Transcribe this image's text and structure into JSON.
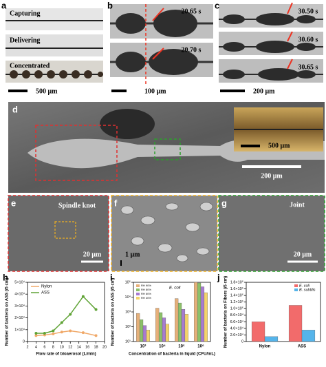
{
  "panel_letters": [
    "a",
    "b",
    "c",
    "d",
    "e",
    "f",
    "g",
    "h",
    "i",
    "j"
  ],
  "panels": {
    "a": {
      "labels": [
        "Capturing",
        "Delivering",
        "Concentrated"
      ],
      "scale": "500 μm"
    },
    "b": {
      "times": [
        "20.65 s",
        "20.70 s"
      ],
      "scale": "100 μm"
    },
    "c": {
      "times": [
        "30.50 s",
        "30.60 s",
        "30.65 s"
      ],
      "scale": "200 μm"
    },
    "d": {
      "scale": "200 μm",
      "inset_scale": "500 μm"
    },
    "e": {
      "label": "Spindle knot",
      "scale": "20 μm"
    },
    "f": {
      "scale": "1 μm"
    },
    "g": {
      "label": "Joint",
      "scale": "20 μm"
    }
  },
  "chart_data": [
    {
      "type": "line",
      "x_label": "Flow rate of bioaerosol (L/min)",
      "y_label": "Number of bacteria on ASS (/5 cm)",
      "xlim": [
        2,
        20
      ],
      "xticks": [
        2,
        4,
        6,
        8,
        10,
        12,
        14,
        16,
        18,
        20
      ],
      "ylim": [
        0,
        50000
      ],
      "yticks": [
        0,
        {
          "value": 10000,
          "label": "1×10⁴"
        },
        {
          "value": 20000,
          "label": "2×10⁴"
        },
        {
          "value": 30000,
          "label": "3×10⁴"
        },
        {
          "value": 40000,
          "label": "4×10⁴"
        },
        {
          "value": 50000,
          "label": "5×10⁴"
        }
      ],
      "x": [
        4,
        6,
        8,
        10,
        12,
        15,
        18
      ],
      "series": [
        {
          "name": "Nylon",
          "color": "#f0a868",
          "values": [
            5000,
            5500,
            6500,
            8000,
            9000,
            7500,
            5000
          ]
        },
        {
          "name": "ASS",
          "color": "#5fa335",
          "values": [
            7000,
            7000,
            9000,
            16000,
            23000,
            38000,
            27000
          ]
        }
      ]
    },
    {
      "type": "bar",
      "log_scale": true,
      "annotation": "E. coli",
      "x_label": "Concentration of bacteria in liquid (CFU/mL)",
      "y_label": "Number of bacteria on ASS (/5 cm)",
      "categories": [
        "10³",
        "10⁴",
        "10⁵",
        "10⁶"
      ],
      "ylim": [
        10,
        100000
      ],
      "yticks": [
        {
          "value": 10,
          "label": "10¹"
        },
        {
          "value": 100,
          "label": "10²"
        },
        {
          "value": 1000,
          "label": "10³"
        },
        {
          "value": 10000,
          "label": "10⁴"
        },
        {
          "value": 100000,
          "label": "10⁵"
        }
      ],
      "series": [
        {
          "name": "RH 90%",
          "color": "#e6b07a",
          "values": [
            800,
            1800,
            8000,
            100000
          ]
        },
        {
          "name": "RH 80%",
          "color": "#8cc06a",
          "values": [
            300,
            900,
            4000,
            90000
          ]
        },
        {
          "name": "RH 60%",
          "color": "#a77bd0",
          "values": [
            120,
            400,
            1500,
            50000
          ]
        },
        {
          "name": "RH 40%",
          "color": "#f2d36b",
          "values": [
            60,
            150,
            700,
            20000
          ]
        }
      ]
    },
    {
      "type": "bar",
      "y_label": "Number of bacteria on Fibers (/5 cm)",
      "categories": [
        "Nylon",
        "ASS"
      ],
      "ylim": [
        0,
        180000
      ],
      "yticks": [
        0,
        {
          "value": 20000,
          "label": "2.0×10⁴"
        },
        {
          "value": 40000,
          "label": "4.0×10⁴"
        },
        {
          "value": 60000,
          "label": "6.0×10⁴"
        },
        {
          "value": 80000,
          "label": "8.0×10⁴"
        },
        {
          "value": 100000,
          "label": "1.0×10⁵"
        },
        {
          "value": 120000,
          "label": "1.2×10⁵"
        },
        {
          "value": 140000,
          "label": "1.4×10⁵"
        },
        {
          "value": 160000,
          "label": "1.6×10⁵"
        },
        {
          "value": 180000,
          "label": "1.8×10⁵"
        }
      ],
      "series": [
        {
          "name": "E. coli",
          "color": "#f26b6b",
          "values": [
            60000,
            110000
          ]
        },
        {
          "name": "B. subtilis",
          "color": "#55b4ea",
          "values": [
            15000,
            35000
          ]
        }
      ]
    }
  ]
}
